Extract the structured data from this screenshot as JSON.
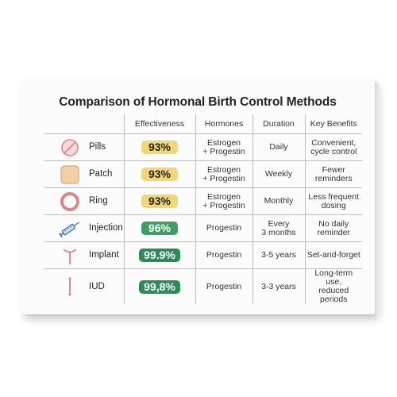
{
  "title": "Comparison of Hormonal Birth Control Methods",
  "headers": [
    "",
    "Effectiveness",
    "Hormones",
    "Duration",
    "Key Benefits"
  ],
  "rows": [
    {
      "method": "Pills",
      "icon": "pill-icon",
      "effectiveness": "93%",
      "hormones": [
        "Estrogen",
        "+ Progestin"
      ],
      "duration": [
        "Daily"
      ],
      "benefits": [
        "Convenient,",
        "cycle control"
      ],
      "badge": "yellow"
    },
    {
      "method": "Patch",
      "icon": "patch-icon",
      "effectiveness": "93%",
      "hormones": [
        "Estrogen",
        "+ Progestin"
      ],
      "duration": [
        "Weekly"
      ],
      "benefits": [
        "Fewer",
        "reminders"
      ],
      "badge": "yellow"
    },
    {
      "method": "Ring",
      "icon": "ring-icon",
      "effectiveness": "93%",
      "hormones": [
        "Estrogen",
        "+ Progestin"
      ],
      "duration": [
        "Monthly"
      ],
      "benefits": [
        "Less frequent",
        "dosing"
      ],
      "badge": "yellow"
    },
    {
      "method": "Injection",
      "icon": "syringe-icon",
      "effectiveness": "96%",
      "hormones": [
        "Progestin"
      ],
      "duration": [
        "Every",
        "3 months"
      ],
      "benefits": [
        "No daily",
        "reminder"
      ],
      "badge": "green"
    },
    {
      "method": "Implant",
      "icon": "implant-icon",
      "effectiveness": "99.9%",
      "hormones": [
        "Progestin"
      ],
      "duration": [
        "3-5 years"
      ],
      "benefits": [
        "Set-and-forget"
      ],
      "badge": "dark"
    },
    {
      "method": "IUD",
      "icon": "iud-icon",
      "effectiveness": "99,8%",
      "hormones": [
        "Progestin"
      ],
      "duration": [
        "3-3 years"
      ],
      "benefits": [
        "Long-term use,",
        "reduced periods"
      ],
      "badge": "dark"
    }
  ],
  "colors": {
    "yellow": "#f3d675",
    "green": "#3f9e63",
    "icon": "#d9868a",
    "patch": "#f2cfa6"
  }
}
